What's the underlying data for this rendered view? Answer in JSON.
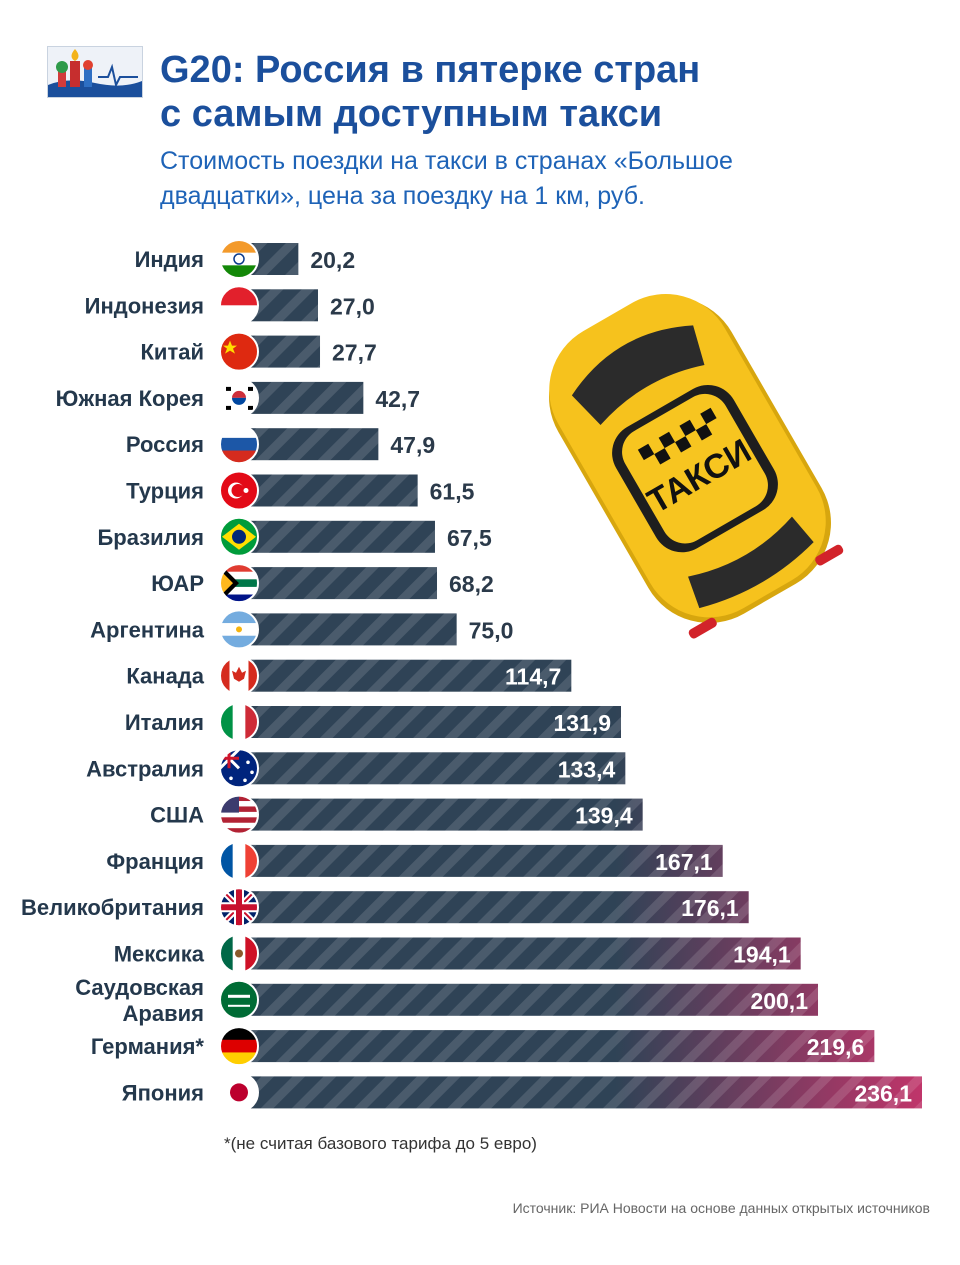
{
  "header": {
    "title": "G20: Россия в пятерке стран\nс самым доступным такси",
    "subtitle": "Стоимость поездки на такси в странах «Большое\nдвадцатки», цена за поездку на 1 км, руб."
  },
  "illustration": {
    "sign_text": "ТАКСИ"
  },
  "footnote": "*(не считая базового тарифа до 5 евро)",
  "source": "Источник: РИА Новости на основе данных открытых источников",
  "chart_data": {
    "type": "bar",
    "orientation": "horizontal",
    "categories": [
      "Индия",
      "Индонезия",
      "Китай",
      "Южная Корея",
      "Россия",
      "Турция",
      "Бразилия",
      "ЮАР",
      "Аргентина",
      "Канада",
      "Италия",
      "Австралия",
      "США",
      "Франция",
      "Великобритания",
      "Мексика",
      "Саудовская\nАравия",
      "Германия*",
      "Япония"
    ],
    "flags": [
      "india-flag",
      "indonesia-flag",
      "china-flag",
      "south-korea-flag",
      "russia-flag",
      "turkey-flag",
      "brazil-flag",
      "south-africa-flag",
      "argentina-flag",
      "canada-flag",
      "italy-flag",
      "australia-flag",
      "usa-flag",
      "france-flag",
      "uk-flag",
      "mexico-flag",
      "saudi-arabia-flag",
      "germany-flag",
      "japan-flag"
    ],
    "values": [
      20.2,
      27.0,
      27.7,
      42.7,
      47.9,
      61.5,
      67.5,
      68.2,
      75.0,
      114.7,
      131.9,
      133.4,
      139.4,
      167.1,
      176.1,
      194.1,
      200.1,
      219.6,
      236.1
    ],
    "value_labels": [
      "20,2",
      "27,0",
      "27,7",
      "42,7",
      "47,9",
      "61,5",
      "67,5",
      "68,2",
      "75,0",
      "114,7",
      "131,9",
      "133,4",
      "139,4",
      "167,1",
      "176,1",
      "194,1",
      "200,1",
      "219,6",
      "236,1"
    ],
    "xlim": [
      0,
      236.1
    ],
    "colors": {
      "bar_start": "#2f4356",
      "bar_end": "#c0356a",
      "label_dark": "#2b3a4a",
      "label_light": "#ffffff"
    }
  }
}
